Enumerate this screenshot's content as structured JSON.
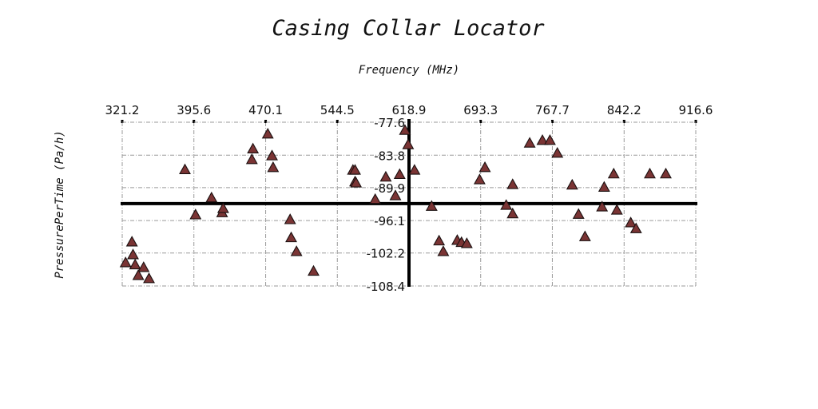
{
  "chart_data": {
    "type": "scatter",
    "title": "Casing Collar Locator",
    "xlabel": "Frequency (MHz)",
    "ylabel": "PressurePerTime (Pa/h)",
    "x_ticks": [
      "321.2",
      "395.6",
      "470.1",
      "544.5",
      "618.9",
      "693.3",
      "767.7",
      "842.2",
      "916.6"
    ],
    "y_ticks": [
      "-77.6",
      "-83.8",
      "-89.9",
      "-96.1",
      "-102.2",
      "-108.4"
    ],
    "xlim": [
      321.2,
      916.6
    ],
    "ylim": [
      -108.4,
      -77.6
    ],
    "x_axis_position": "top",
    "grid": "horizontal and vertical, dash-dot",
    "marker": "triangle",
    "marker_color": "#7a3434",
    "reference_lines": {
      "vertical_x": 618.9,
      "horizontal_y": -92.9
    },
    "series": [
      {
        "points": [
          [
            386.3,
            -86.5
          ],
          [
            397.3,
            -95.0
          ],
          [
            413.9,
            -91.8
          ],
          [
            424.9,
            -94.6
          ],
          [
            426.0,
            -93.8
          ],
          [
            455.8,
            -84.6
          ],
          [
            456.9,
            -82.6
          ],
          [
            472.3,
            -79.8
          ],
          [
            476.7,
            -83.9
          ],
          [
            477.8,
            -86.1
          ],
          [
            495.5,
            -95.9
          ],
          [
            496.6,
            -99.3
          ],
          [
            502.1,
            -101.9
          ],
          [
            519.8,
            -105.6
          ],
          [
            560.7,
            -86.6
          ],
          [
            562.9,
            -86.6
          ],
          [
            562.9,
            -88.8
          ],
          [
            563.9,
            -89.0
          ],
          [
            583.8,
            -92.1
          ],
          [
            594.8,
            -87.9
          ],
          [
            604.8,
            -91.4
          ],
          [
            609.2,
            -87.4
          ],
          [
            614.7,
            -79.1
          ],
          [
            624.6,
            -86.6
          ],
          [
            324.7,
            -104.0
          ],
          [
            332.4,
            -102.5
          ],
          [
            331.3,
            -100.1
          ],
          [
            334.6,
            -104.4
          ],
          [
            343.4,
            -104.9
          ],
          [
            337.9,
            -106.4
          ],
          [
            349.0,
            -107.0
          ],
          [
            642.4,
            -93.4
          ],
          [
            650.1,
            -99.9
          ],
          [
            654.5,
            -101.9
          ],
          [
            669.0,
            -99.8
          ],
          [
            673.4,
            -100.2
          ],
          [
            678.9,
            -100.4
          ],
          [
            692.2,
            -88.4
          ],
          [
            697.7,
            -86.1
          ],
          [
            719.8,
            -93.2
          ],
          [
            726.5,
            -94.8
          ],
          [
            726.5,
            -89.3
          ],
          [
            744.2,
            -81.5
          ],
          [
            757.4,
            -81.0
          ],
          [
            765.2,
            -81.0
          ],
          [
            772.9,
            -83.4
          ],
          [
            788.3,
            -89.4
          ],
          [
            794.9,
            -94.9
          ],
          [
            801.6,
            -99.1
          ],
          [
            819.3,
            -93.5
          ],
          [
            821.5,
            -89.8
          ],
          [
            831.4,
            -87.3
          ],
          [
            834.7,
            -94.1
          ],
          [
            849.1,
            -96.5
          ],
          [
            854.6,
            -97.6
          ],
          [
            868.9,
            -87.3
          ],
          [
            885.5,
            -87.3
          ],
          [
            618.0,
            -81.8
          ]
        ]
      }
    ]
  }
}
